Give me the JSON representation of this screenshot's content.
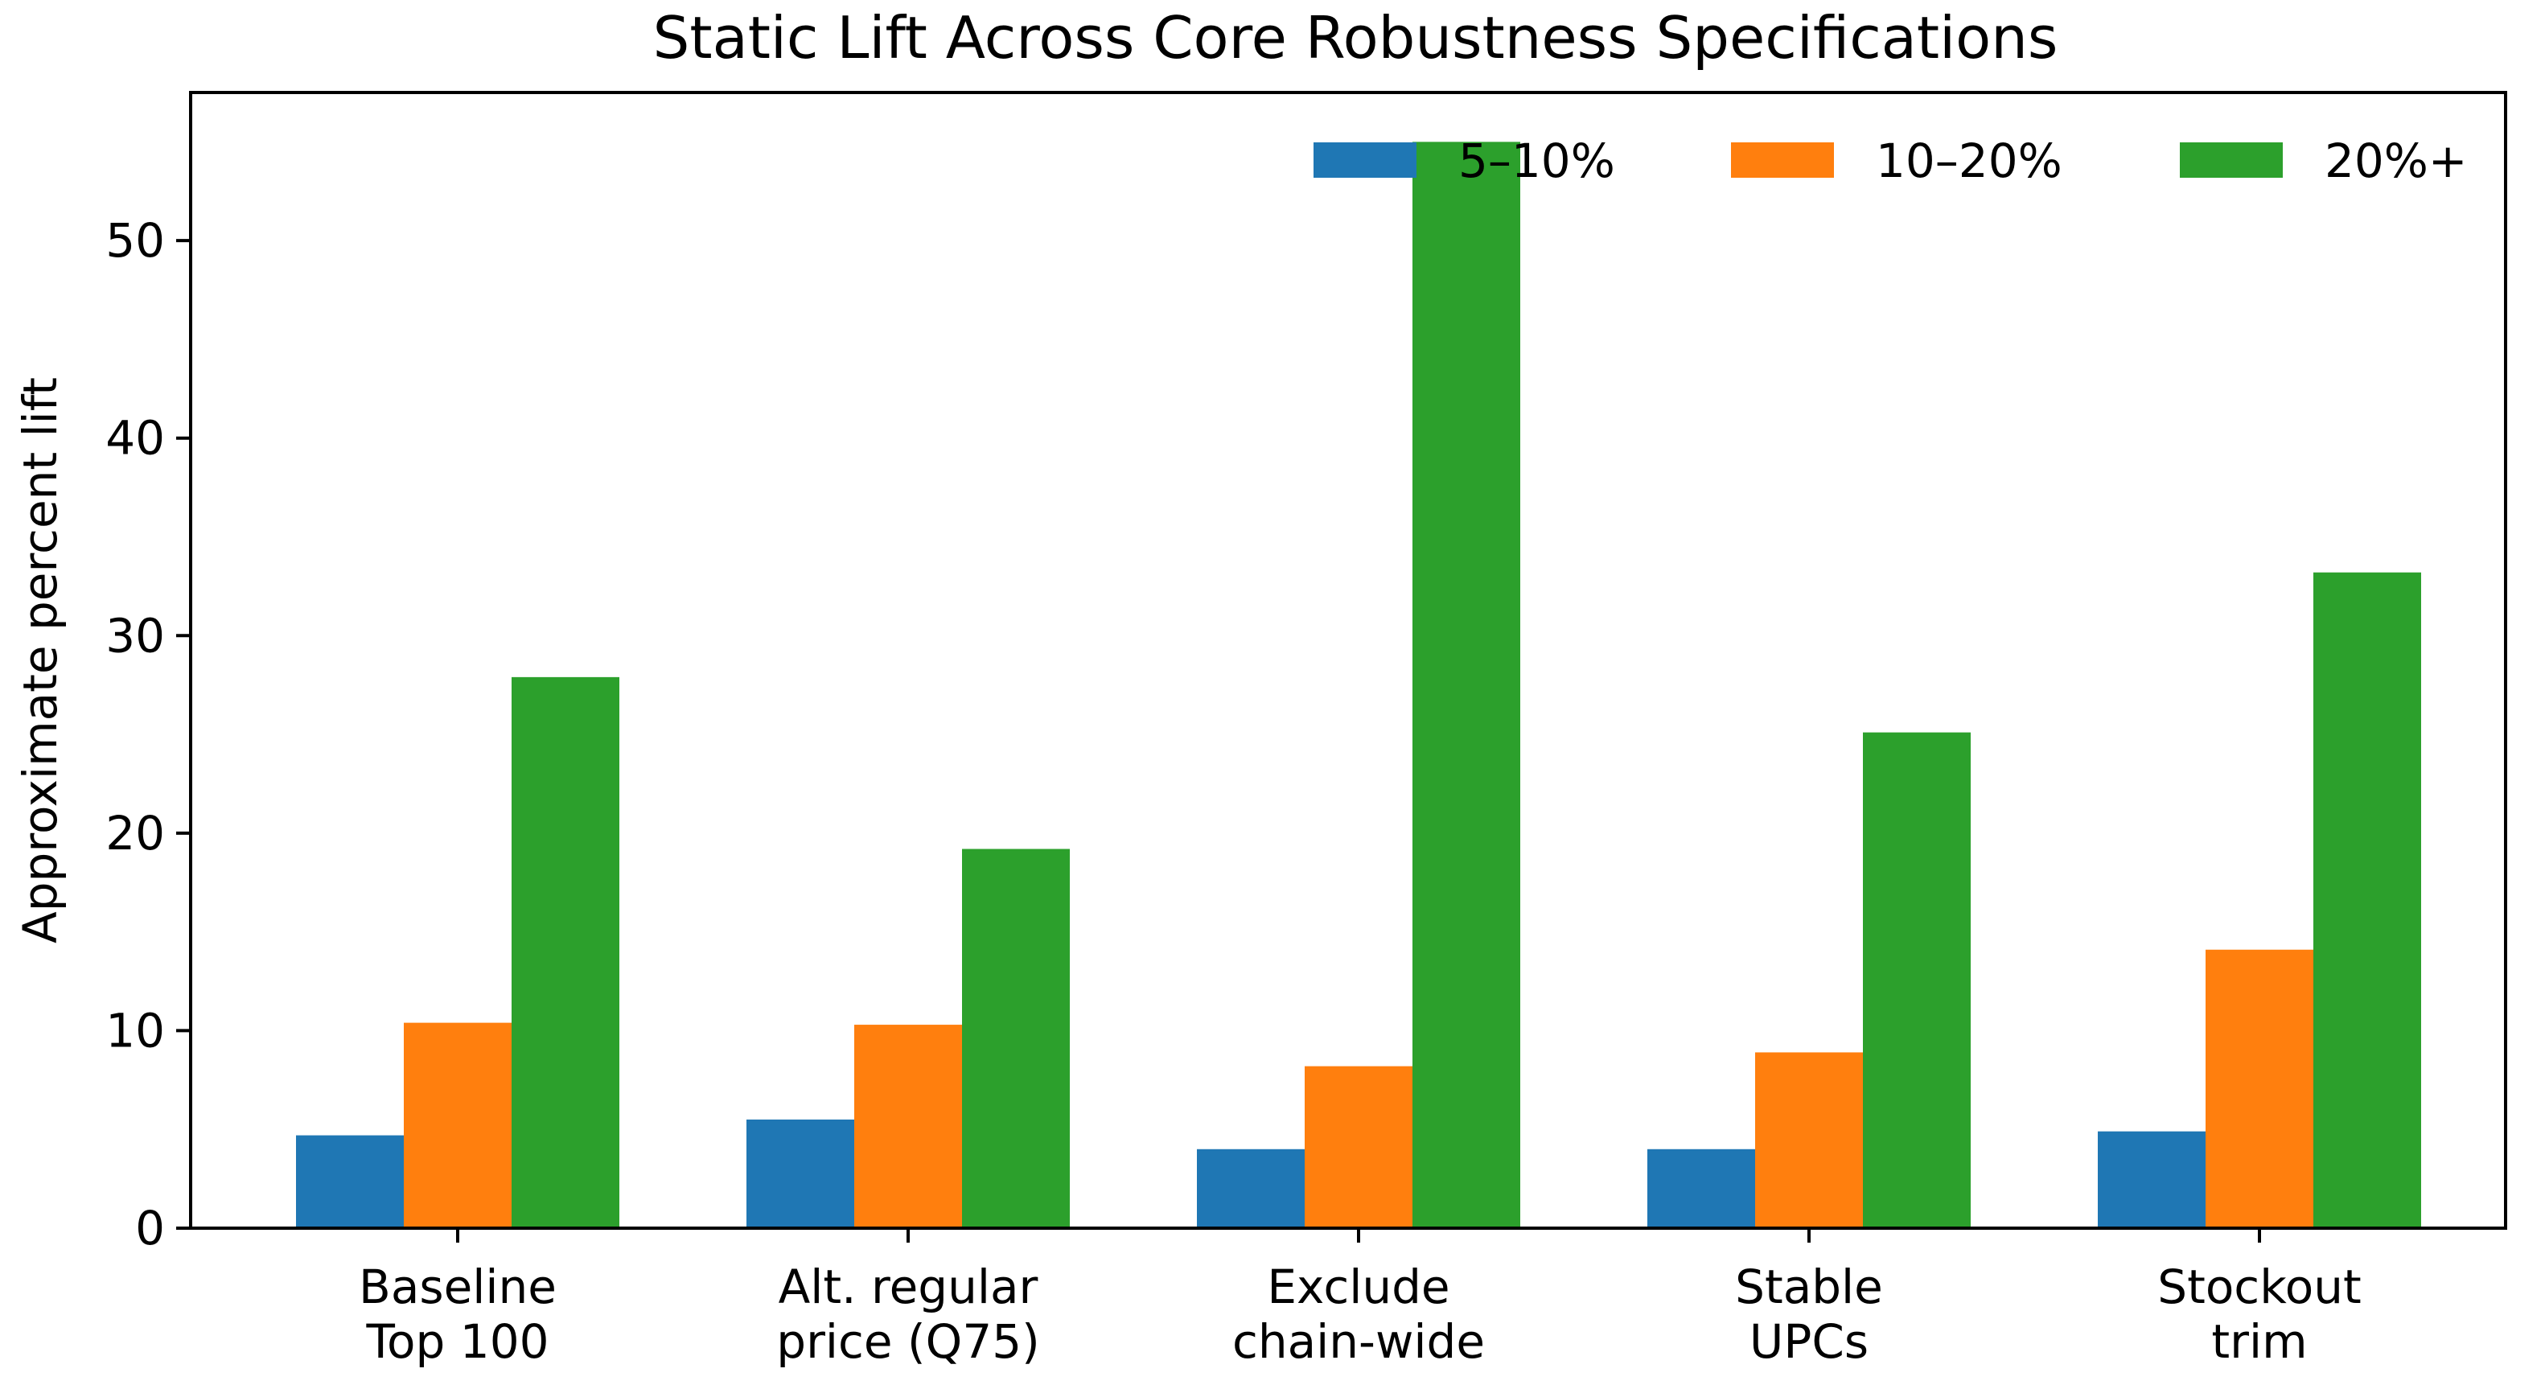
{
  "chart_data": {
    "type": "bar",
    "title": "Static Lift Across Core Robustness Specifications",
    "xlabel": "",
    "ylabel": "Approximate percent lift",
    "ylim": [
      0,
      57.5
    ],
    "yticks": [
      0,
      10,
      20,
      30,
      40,
      50
    ],
    "categories": [
      [
        "Baseline",
        "Top 100"
      ],
      [
        "Alt. regular",
        "price (Q75)"
      ],
      [
        "Exclude",
        "chain-wide"
      ],
      [
        "Stable",
        "UPCs"
      ],
      [
        "Stockout",
        "trim"
      ]
    ],
    "series": [
      {
        "name": "5–10%",
        "color": "#1f77b4",
        "values": [
          4.7,
          5.5,
          4.0,
          4.0,
          4.9
        ]
      },
      {
        "name": "10–20%",
        "color": "#ff7f0e",
        "values": [
          10.4,
          10.3,
          8.2,
          8.9,
          14.1
        ]
      },
      {
        "name": "20%+",
        "color": "#2ca02c",
        "values": [
          27.9,
          19.2,
          55.0,
          25.1,
          33.2
        ]
      }
    ],
    "legend": {
      "placement": "top-right",
      "columns": 3
    },
    "grid": false
  }
}
